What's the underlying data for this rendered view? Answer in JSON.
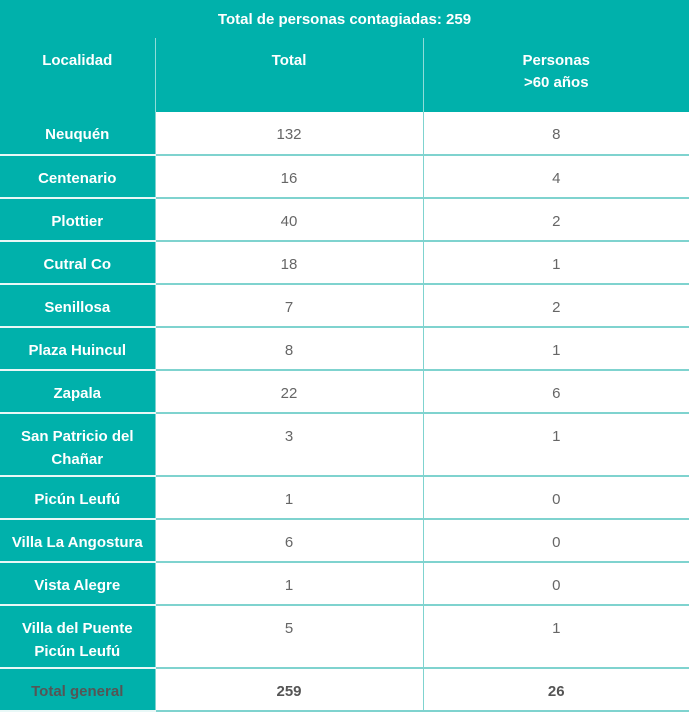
{
  "title": "Total de personas contagiadas: 259",
  "colors": {
    "accent": "#00b1ab"
  },
  "headers": [
    "Localidad",
    "Total",
    "Personas\n>60 años"
  ],
  "header_personas_line1": "Personas",
  "header_personas_line2": ">60 años",
  "rows": [
    {
      "localidad": "Neuquén",
      "total": "132",
      "mayores60": "8"
    },
    {
      "localidad": "Centenario",
      "total": "16",
      "mayores60": "4"
    },
    {
      "localidad": "Plottier",
      "total": "40",
      "mayores60": "2"
    },
    {
      "localidad": "Cutral Co",
      "total": "18",
      "mayores60": "1"
    },
    {
      "localidad": "Senillosa",
      "total": "7",
      "mayores60": "2"
    },
    {
      "localidad": "Plaza Huincul",
      "total": "8",
      "mayores60": "1"
    },
    {
      "localidad": "Zapala",
      "total": "22",
      "mayores60": "6"
    },
    {
      "localidad": "San Patricio del Chañar",
      "total": "3",
      "mayores60": "1"
    },
    {
      "localidad": "Picún Leufú",
      "total": "1",
      "mayores60": "0"
    },
    {
      "localidad": "Villa La Angostura",
      "total": "6",
      "mayores60": "0"
    },
    {
      "localidad": "Vista Alegre",
      "total": "1",
      "mayores60": "0"
    },
    {
      "localidad": "Villa del Puente Picún Leufú",
      "total": "5",
      "mayores60": "1"
    }
  ],
  "total_row": {
    "localidad": "Total general",
    "total": "259",
    "mayores60": "26"
  }
}
